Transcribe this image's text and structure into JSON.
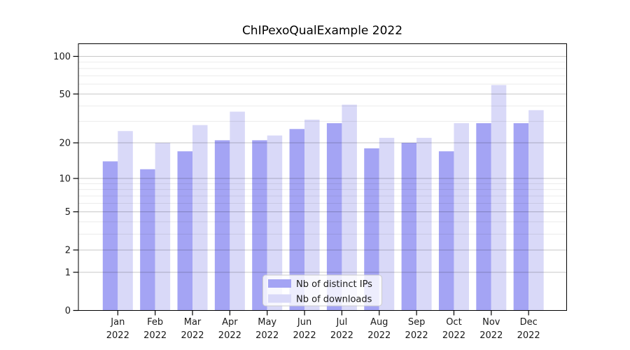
{
  "title": "ChIPexoQualExample 2022",
  "chart_data": {
    "type": "bar",
    "title": "ChIPexoQualExample 2022",
    "categories": [
      "Jan 2022",
      "Feb 2022",
      "Mar 2022",
      "Apr 2022",
      "May 2022",
      "Jun 2022",
      "Jul 2022",
      "Aug 2022",
      "Sep 2022",
      "Oct 2022",
      "Nov 2022",
      "Dec 2022"
    ],
    "series": [
      {
        "name": "Nb of distinct IPs",
        "color": "#a4a4f4",
        "values": [
          14,
          12,
          17,
          21,
          21,
          26,
          29,
          18,
          20,
          17,
          29,
          29
        ]
      },
      {
        "name": "Nb of downloads",
        "color": "#d9d9f8",
        "values": [
          25,
          20,
          28,
          36,
          23,
          31,
          41,
          22,
          22,
          29,
          59,
          37
        ]
      }
    ],
    "xlabel": "",
    "ylabel": "",
    "yscale": "log1p",
    "yticks": [
      0,
      1,
      2,
      5,
      10,
      20,
      50,
      100
    ],
    "ylim": [
      0,
      125
    ],
    "grid": "major and minor horizontal gridlines, drawn over bars",
    "legend_position": "lower center"
  },
  "colors": {
    "bar_dark": "#a4a4f4",
    "bar_light": "#d9d9f8",
    "grid_major": "rgba(0,0,0,0.22)",
    "grid_minor": "rgba(0,0,0,0.08)",
    "axis": "#000000",
    "legend_border": "#cccccc",
    "legend_bg": "rgba(255,255,255,0.8)"
  }
}
